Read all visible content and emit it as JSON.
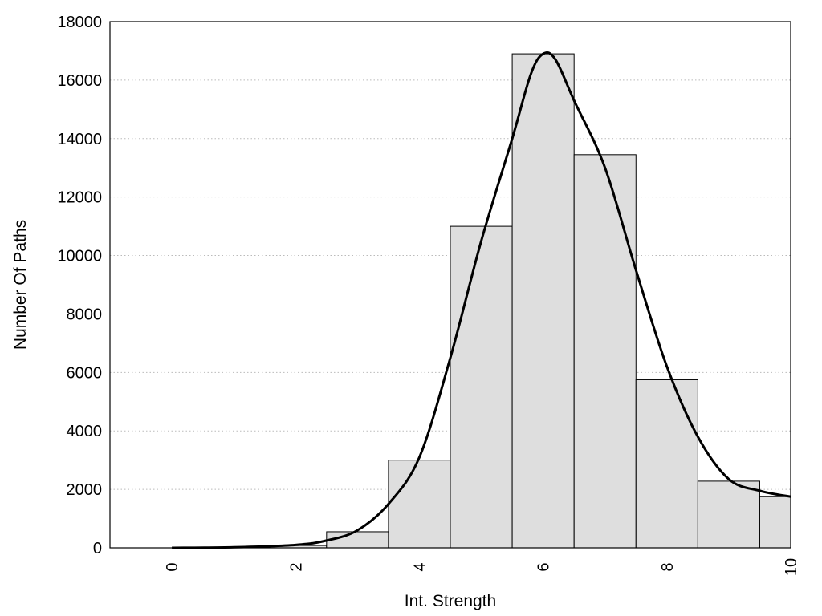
{
  "chart_data": {
    "type": "bar",
    "title": "",
    "xlabel": "Int. Strength",
    "ylabel": "Number Of Paths",
    "xlim": [
      -1,
      10
    ],
    "ylim": [
      0,
      18000
    ],
    "x_ticks": [
      "0",
      "2",
      "4",
      "6",
      "8",
      "10"
    ],
    "y_ticks": [
      "0",
      "2000",
      "4000",
      "6000",
      "8000",
      "10000",
      "12000",
      "14000",
      "16000",
      "18000"
    ],
    "grid": "horizontal dotted",
    "legend": "none",
    "bar_color": "#dedede",
    "bins": [
      {
        "x": 0,
        "value": 0
      },
      {
        "x": 1,
        "value": 0
      },
      {
        "x": 2,
        "value": 80
      },
      {
        "x": 3,
        "value": 550
      },
      {
        "x": 4,
        "value": 3000
      },
      {
        "x": 5,
        "value": 11000
      },
      {
        "x": 6,
        "value": 16900
      },
      {
        "x": 7,
        "value": 13450
      },
      {
        "x": 8,
        "value": 5750
      },
      {
        "x": 9,
        "value": 2280
      },
      {
        "x": 10,
        "value": 1750
      }
    ],
    "curve": {
      "x": [
        0,
        1,
        2,
        2.5,
        3,
        3.5,
        4,
        4.5,
        5,
        5.5,
        5.8,
        6,
        6.2,
        6.5,
        7,
        7.5,
        8,
        8.5,
        9,
        9.5,
        10
      ],
      "y": [
        0,
        20,
        100,
        250,
        600,
        1500,
        3100,
        6500,
        10500,
        14000,
        16200,
        16900,
        16700,
        15300,
        13000,
        9500,
        6200,
        3800,
        2350,
        1950,
        1750
      ]
    }
  }
}
